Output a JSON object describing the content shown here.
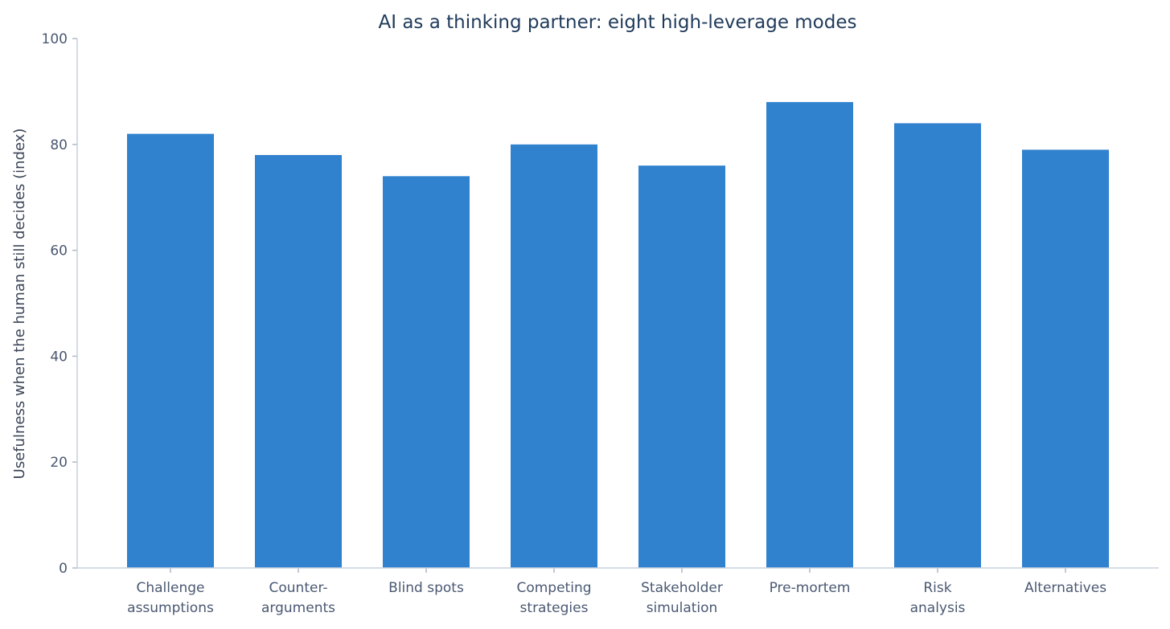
{
  "chart_data": {
    "type": "bar",
    "title": "AI as a thinking partner: eight high-leverage modes",
    "xlabel": "",
    "ylabel": "Usefulness when the human still decides (index)",
    "categories": [
      [
        "Challenge",
        "assumptions"
      ],
      [
        "Counter-",
        "arguments"
      ],
      [
        "Blind spots"
      ],
      [
        "Competing",
        "strategies"
      ],
      [
        "Stakeholder",
        "simulation"
      ],
      [
        "Pre-mortem"
      ],
      [
        "Risk",
        "analysis"
      ],
      [
        "Alternatives"
      ]
    ],
    "values": [
      82,
      78,
      74,
      80,
      76,
      88,
      84,
      79
    ],
    "ylim": [
      0,
      100
    ],
    "yticks": [
      0,
      20,
      40,
      60,
      80,
      100
    ],
    "bar_color": "#3081ce",
    "grid": false,
    "legend": "none"
  }
}
